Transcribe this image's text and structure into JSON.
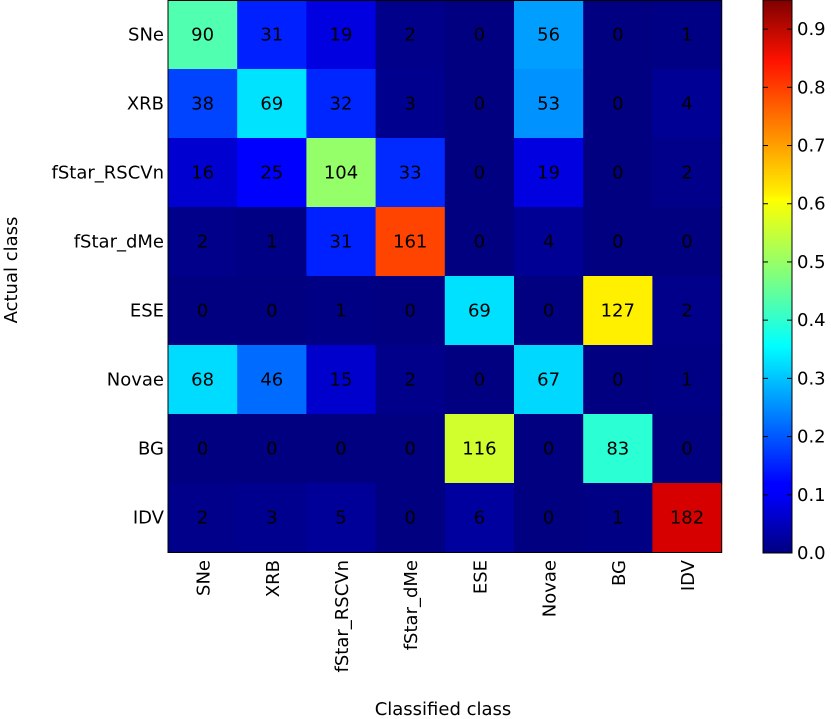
{
  "chart_data": {
    "type": "heatmap",
    "title": "",
    "xlabel": "Classified class",
    "ylabel": "Actual class",
    "x_categories": [
      "SNe",
      "XRB",
      "fStar_RSCVn",
      "fStar_dMe",
      "ESE",
      "Novae",
      "BG",
      "IDV"
    ],
    "y_categories": [
      "SNe",
      "XRB",
      "fStar_RSCVn",
      "fStar_dMe",
      "ESE",
      "Novae",
      "BG",
      "IDV"
    ],
    "values": [
      [
        90,
        31,
        19,
        2,
        0,
        56,
        0,
        1
      ],
      [
        38,
        69,
        32,
        3,
        0,
        53,
        0,
        4
      ],
      [
        16,
        25,
        104,
        33,
        0,
        19,
        0,
        2
      ],
      [
        2,
        1,
        31,
        161,
        0,
        4,
        0,
        0
      ],
      [
        0,
        0,
        1,
        0,
        69,
        0,
        127,
        2
      ],
      [
        68,
        46,
        15,
        2,
        0,
        67,
        0,
        1
      ],
      [
        0,
        0,
        0,
        0,
        116,
        0,
        83,
        0
      ],
      [
        2,
        3,
        5,
        0,
        6,
        0,
        1,
        182
      ]
    ],
    "color_values": [
      [
        0.453,
        0.156,
        0.095,
        0.01,
        0.0,
        0.281,
        0.0,
        0.005
      ],
      [
        0.192,
        0.348,
        0.162,
        0.015,
        0.0,
        0.268,
        0.0,
        0.02
      ],
      [
        0.08,
        0.125,
        0.521,
        0.166,
        0.0,
        0.095,
        0.0,
        0.01
      ],
      [
        0.01,
        0.005,
        0.157,
        0.808,
        0.0,
        0.02,
        0.0,
        0.0
      ],
      [
        0.0,
        0.0,
        0.005,
        0.0,
        0.346,
        0.0,
        0.64,
        0.01
      ],
      [
        0.341,
        0.23,
        0.075,
        0.01,
        0.0,
        0.337,
        0.0,
        0.005
      ],
      [
        0.0,
        0.0,
        0.0,
        0.0,
        0.58,
        0.0,
        0.417,
        0.0
      ],
      [
        0.01,
        0.015,
        0.025,
        0.0,
        0.03,
        0.0,
        0.005,
        0.914
      ]
    ],
    "colormap": "jet",
    "colorbar": {
      "range": [
        0.0,
        0.95
      ],
      "ticks": [
        0.0,
        0.1,
        0.2,
        0.3,
        0.4,
        0.5,
        0.6,
        0.7,
        0.8,
        0.9
      ],
      "tick_labels": [
        "0.0",
        "0.1",
        "0.2",
        "0.3",
        "0.4",
        "0.5",
        "0.6",
        "0.7",
        "0.8",
        "0.9"
      ]
    }
  }
}
